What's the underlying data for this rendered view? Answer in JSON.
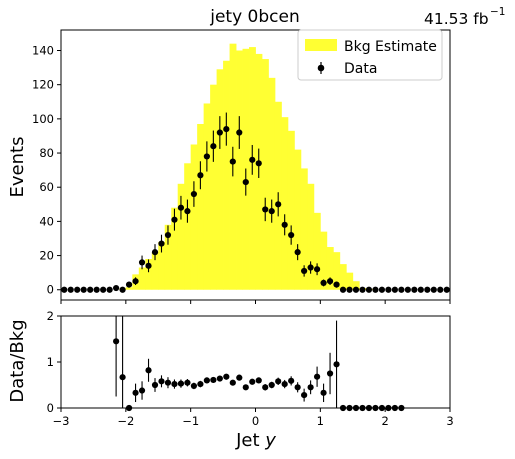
{
  "header": {
    "title": "jety  0bcen",
    "luminosity": "41.53 fb",
    "luminosity_sup": "−1"
  },
  "legend": {
    "bkg_label": "Bkg Estimate",
    "data_label": "Data",
    "position": "top-right"
  },
  "colors": {
    "bkg_fill": "#ffff33",
    "data_marker": "#000000"
  },
  "chart_data": [
    {
      "type": "histogram",
      "panel": "main",
      "xlim": [
        -3,
        3
      ],
      "ylim": [
        -6,
        152
      ],
      "ylabel": "Events",
      "xlabel": "",
      "yticks": [
        0,
        20,
        40,
        60,
        80,
        100,
        120,
        140
      ],
      "xticks": [
        -3,
        -2,
        -1,
        0,
        1,
        2,
        3
      ],
      "grid": false,
      "bin_edges": [
        -3.0,
        -2.9,
        -2.8,
        -2.7,
        -2.6,
        -2.5,
        -2.4,
        -2.3,
        -2.2,
        -2.1,
        -2.0,
        -1.9,
        -1.8,
        -1.7,
        -1.6,
        -1.5,
        -1.4,
        -1.3,
        -1.2,
        -1.1,
        -1.0,
        -0.9,
        -0.8,
        -0.7,
        -0.6,
        -0.5,
        -0.4,
        -0.3,
        -0.2,
        -0.1,
        0.0,
        0.1,
        0.2,
        0.3,
        0.4,
        0.5,
        0.6,
        0.7,
        0.8,
        0.9,
        1.0,
        1.1,
        1.2,
        1.3,
        1.4,
        1.5,
        1.6,
        1.7,
        1.8,
        1.9,
        2.0,
        2.1,
        2.2,
        2.3,
        2.4,
        2.5,
        2.6,
        2.7,
        2.8,
        2.9,
        3.0
      ],
      "series": [
        {
          "name": "Bkg Estimate",
          "kind": "filled-histogram",
          "values": [
            0,
            0,
            0,
            0,
            0,
            0,
            0,
            0,
            0,
            0.7,
            1.5,
            9,
            13,
            18,
            22,
            28,
            38,
            48,
            62,
            74,
            85,
            97,
            109,
            120,
            129,
            134,
            144,
            140,
            141,
            142,
            138,
            135,
            124,
            110,
            101,
            93,
            82,
            71,
            62,
            45,
            34,
            25,
            22,
            15,
            10,
            5,
            1,
            0.5,
            0,
            0,
            0,
            0,
            0,
            0,
            0,
            0,
            0,
            0,
            0,
            0
          ]
        },
        {
          "name": "Data",
          "kind": "errorbar",
          "x": [
            -2.95,
            -2.85,
            -2.75,
            -2.65,
            -2.55,
            -2.45,
            -2.35,
            -2.25,
            -2.15,
            -2.05,
            -1.95,
            -1.85,
            -1.75,
            -1.65,
            -1.55,
            -1.45,
            -1.35,
            -1.25,
            -1.15,
            -1.05,
            -0.95,
            -0.85,
            -0.75,
            -0.65,
            -0.55,
            -0.45,
            -0.35,
            -0.25,
            -0.15,
            -0.05,
            0.05,
            0.15,
            0.25,
            0.35,
            0.45,
            0.55,
            0.65,
            0.75,
            0.85,
            0.95,
            1.05,
            1.15,
            1.25,
            1.35,
            1.45,
            1.55,
            1.65,
            1.75,
            1.85,
            1.95,
            2.05,
            2.15,
            2.25,
            2.35,
            2.45,
            2.55,
            2.65,
            2.75,
            2.85,
            2.95
          ],
          "y": [
            0,
            0,
            0,
            0,
            0,
            0,
            0,
            0,
            1,
            0,
            3,
            5,
            16,
            14,
            22,
            27,
            32,
            41,
            48,
            46,
            56,
            67,
            78,
            84,
            92,
            94,
            75,
            92,
            63,
            76,
            74,
            47,
            46,
            50,
            38,
            32,
            22,
            11,
            13,
            12,
            4,
            5,
            3,
            0,
            0,
            0,
            0,
            0,
            0,
            0,
            0,
            0,
            0,
            0,
            0,
            0,
            0,
            0,
            0,
            0
          ]
        }
      ]
    },
    {
      "type": "scatter",
      "panel": "ratio",
      "xlim": [
        -3,
        3
      ],
      "ylim": [
        0,
        2
      ],
      "ylabel": "Data/Bkg",
      "xlabel": "Jet y",
      "yticks": [
        0,
        1,
        2
      ],
      "xticks": [
        -3,
        -2,
        -1,
        0,
        1,
        2,
        3
      ],
      "grid": false,
      "series": [
        {
          "name": "Data/Bkg",
          "kind": "errorbar",
          "x": [
            -2.15,
            -2.05,
            -1.95,
            -1.85,
            -1.75,
            -1.65,
            -1.55,
            -1.45,
            -1.35,
            -1.25,
            -1.15,
            -1.05,
            -0.95,
            -0.85,
            -0.75,
            -0.65,
            -0.55,
            -0.45,
            -0.35,
            -0.25,
            -0.15,
            -0.05,
            0.05,
            0.15,
            0.25,
            0.35,
            0.45,
            0.55,
            0.65,
            0.75,
            0.85,
            0.95,
            1.05,
            1.15,
            1.25,
            1.35,
            1.45,
            1.55,
            1.65,
            1.75,
            1.85,
            1.95,
            2.05,
            2.15,
            2.25
          ],
          "y": [
            1.45,
            0.67,
            0.0,
            0.33,
            0.38,
            0.82,
            0.5,
            0.58,
            0.55,
            0.52,
            0.53,
            0.55,
            0.48,
            0.52,
            0.6,
            0.61,
            0.64,
            0.68,
            0.55,
            0.66,
            0.45,
            0.57,
            0.6,
            0.45,
            0.5,
            0.58,
            0.52,
            0.59,
            0.45,
            0.28,
            0.45,
            0.68,
            0.33,
            0.75,
            0.95,
            0.0,
            0.0,
            0.0,
            0.0,
            0.0,
            0.0,
            0.0,
            0.0,
            0.0,
            0.0
          ],
          "err": [
            1.2,
            1.35,
            0.0,
            0.2,
            0.2,
            0.25,
            0.15,
            0.13,
            0.12,
            0.1,
            0.09,
            0.08,
            0.07,
            0.07,
            0.06,
            0.06,
            0.06,
            0.06,
            0.06,
            0.06,
            0.06,
            0.06,
            0.06,
            0.07,
            0.07,
            0.08,
            0.09,
            0.1,
            0.11,
            0.14,
            0.15,
            0.22,
            0.2,
            0.45,
            0.95,
            0.0,
            0.0,
            0.0,
            0.0,
            0.0,
            0.0,
            0.0,
            0.0,
            0.0,
            0.0
          ]
        }
      ]
    }
  ]
}
